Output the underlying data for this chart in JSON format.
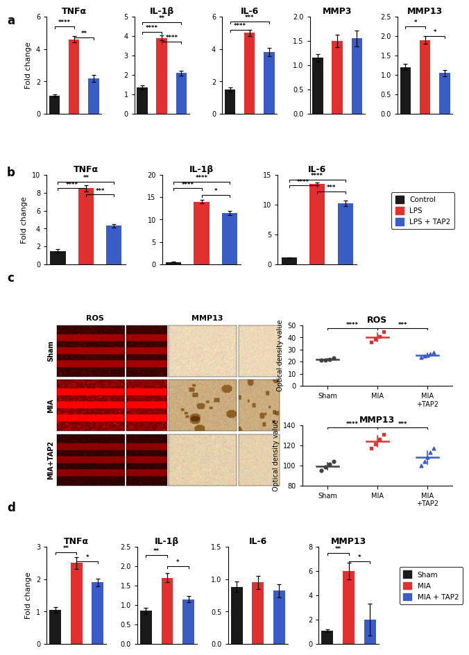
{
  "colors": {
    "black": "#1a1a1a",
    "red": "#e03030",
    "blue": "#3a5cc5",
    "sham_dot": "#404040",
    "mia_dot": "#e03030",
    "mia_tap2_dot": "#3a5cc5"
  },
  "panel_a": {
    "title": "a",
    "genes": [
      "TNFα",
      "IL-1β",
      "IL-6",
      "MMP3",
      "MMP13"
    ],
    "ylabel": "Fold change",
    "data": {
      "TNFα": {
        "means": [
          1.1,
          4.6,
          2.2
        ],
        "errors": [
          0.08,
          0.18,
          0.22
        ],
        "ylim": [
          0,
          6
        ],
        "yticks": [
          0,
          2,
          4,
          6
        ],
        "sig_lines": [
          [
            "****",
            0,
            1,
            5.4
          ],
          [
            "**",
            1,
            2,
            4.7
          ]
        ]
      },
      "IL-1β": {
        "means": [
          1.35,
          3.9,
          2.1
        ],
        "errors": [
          0.1,
          0.12,
          0.13
        ],
        "ylim": [
          0,
          5
        ],
        "yticks": [
          0,
          1,
          2,
          3,
          4,
          5
        ],
        "sig_lines": [
          [
            "**",
            0,
            2,
            4.7
          ],
          [
            "****",
            0,
            1,
            4.2
          ],
          [
            "****",
            1,
            2,
            3.7
          ]
        ]
      },
      "IL-6": {
        "means": [
          1.5,
          5.0,
          3.8
        ],
        "errors": [
          0.12,
          0.18,
          0.25
        ],
        "ylim": [
          0,
          6
        ],
        "yticks": [
          0,
          2,
          4,
          6
        ],
        "sig_lines": [
          [
            "***",
            0,
            2,
            5.7
          ],
          [
            "****",
            0,
            1,
            5.2
          ]
        ]
      },
      "MMP3": {
        "means": [
          1.15,
          1.5,
          1.55
        ],
        "errors": [
          0.08,
          0.13,
          0.16
        ],
        "ylim": [
          0.0,
          2.0
        ],
        "yticks": [
          0.0,
          0.5,
          1.0,
          1.5,
          2.0
        ],
        "sig_lines": []
      },
      "MMP13": {
        "means": [
          1.2,
          1.9,
          1.05
        ],
        "errors": [
          0.08,
          0.1,
          0.08
        ],
        "ylim": [
          0.0,
          2.5
        ],
        "yticks": [
          0.0,
          0.5,
          1.0,
          1.5,
          2.0,
          2.5
        ],
        "sig_lines": [
          [
            "*",
            0,
            1,
            2.25
          ],
          [
            "*",
            1,
            2,
            2.0
          ]
        ]
      }
    }
  },
  "panel_b": {
    "title": "b",
    "genes": [
      "TNFα",
      "IL-1β",
      "IL-6"
    ],
    "ylabel": "Fold change",
    "legend_labels": [
      "Control",
      "LPS",
      "LPS + TAP2"
    ],
    "data": {
      "TNFα": {
        "means": [
          1.5,
          8.5,
          4.3
        ],
        "errors": [
          0.18,
          0.35,
          0.18
        ],
        "ylim": [
          0,
          10
        ],
        "yticks": [
          0,
          2,
          4,
          6,
          8,
          10
        ],
        "sig_lines": [
          [
            "**",
            0,
            2,
            9.2
          ],
          [
            "****",
            0,
            1,
            8.5
          ],
          [
            "***",
            1,
            2,
            7.8
          ]
        ]
      },
      "IL-1β": {
        "means": [
          0.5,
          14.0,
          11.5
        ],
        "errors": [
          0.04,
          0.35,
          0.45
        ],
        "ylim": [
          0,
          20
        ],
        "yticks": [
          0,
          5,
          10,
          15,
          20
        ],
        "sig_lines": [
          [
            "****",
            0,
            2,
            18.5
          ],
          [
            "****",
            0,
            1,
            17.0
          ],
          [
            "*",
            1,
            2,
            15.5
          ]
        ]
      },
      "IL-6": {
        "means": [
          1.1,
          13.5,
          10.2
        ],
        "errors": [
          0.08,
          0.25,
          0.45
        ],
        "ylim": [
          0,
          15
        ],
        "yticks": [
          0,
          5,
          10,
          15
        ],
        "sig_lines": [
          [
            "****",
            0,
            2,
            14.2
          ],
          [
            "****",
            0,
            1,
            13.2
          ],
          [
            "***",
            1,
            2,
            12.2
          ]
        ]
      }
    }
  },
  "panel_c_ros": {
    "title": "ROS",
    "ylabel": "Optical density value",
    "categories": [
      "Sham",
      "MIA",
      "MIA\n+TAP2"
    ],
    "sham_dots": [
      21.0,
      21.5,
      22.0,
      22.8
    ],
    "mia_dots": [
      36.0,
      38.5,
      41.0,
      44.5
    ],
    "mia_tap2_dots": [
      23.5,
      24.5,
      25.5,
      26.5,
      27.5
    ],
    "sham_mean": 21.8,
    "mia_mean": 40.0,
    "mia_tap2_mean": 25.5,
    "sham_err": 0.8,
    "mia_err": 3.5,
    "mia_tap2_err": 1.5,
    "ylim": [
      0,
      50
    ],
    "yticks": [
      0,
      10,
      20,
      30,
      40,
      50
    ],
    "sig_lines": [
      [
        "****",
        0,
        1,
        47.5
      ],
      [
        "***",
        1,
        2,
        47.5
      ]
    ]
  },
  "panel_c_mmp13": {
    "title": "MMP13",
    "ylabel": "Optical density value",
    "categories": [
      "Sham",
      "MIA",
      "MIA\n+TAP2"
    ],
    "sham_dots": [
      95.0,
      98.5,
      101.0,
      104.0
    ],
    "mia_dots": [
      117.0,
      121.0,
      126.0,
      131.0
    ],
    "mia_tap2_dots": [
      100.0,
      104.0,
      108.0,
      113.0,
      117.0
    ],
    "sham_mean": 99.5,
    "mia_mean": 124.0,
    "mia_tap2_mean": 108.0,
    "sham_err": 3.5,
    "mia_err": 5.5,
    "mia_tap2_err": 6.5,
    "ylim": [
      80,
      140
    ],
    "yticks": [
      80,
      100,
      120,
      140
    ],
    "sig_lines": [
      [
        "****",
        0,
        1,
        137.5
      ],
      [
        "***",
        1,
        2,
        137.5
      ]
    ]
  },
  "panel_d": {
    "title": "d",
    "genes": [
      "TNFα",
      "IL-1β",
      "IL-6",
      "MMP13"
    ],
    "ylabel": "Fold change",
    "legend_labels": [
      "Sham",
      "MIA",
      "MIA + TAP2"
    ],
    "data": {
      "TNFα": {
        "means": [
          1.05,
          2.5,
          1.9
        ],
        "errors": [
          0.08,
          0.18,
          0.12
        ],
        "ylim": [
          0,
          3
        ],
        "yticks": [
          0,
          1,
          2,
          3
        ],
        "sig_lines": [
          [
            "**",
            0,
            1,
            2.82
          ],
          [
            "*",
            1,
            2,
            2.55
          ]
        ]
      },
      "IL-1β": {
        "means": [
          0.85,
          1.7,
          1.15
        ],
        "errors": [
          0.08,
          0.12,
          0.08
        ],
        "ylim": [
          0.0,
          2.5
        ],
        "yticks": [
          0.0,
          0.5,
          1.0,
          1.5,
          2.0,
          2.5
        ],
        "sig_lines": [
          [
            "**",
            0,
            1,
            2.28
          ],
          [
            "*",
            1,
            2,
            2.0
          ]
        ]
      },
      "IL-6": {
        "means": [
          0.88,
          0.95,
          0.82
        ],
        "errors": [
          0.08,
          0.1,
          0.1
        ],
        "ylim": [
          0.0,
          1.5
        ],
        "yticks": [
          0.0,
          0.5,
          1.0,
          1.5
        ],
        "sig_lines": []
      },
      "MMP13": {
        "means": [
          1.1,
          6.0,
          2.0
        ],
        "errors": [
          0.12,
          0.7,
          1.3
        ],
        "ylim": [
          0,
          8
        ],
        "yticks": [
          0,
          2,
          4,
          6,
          8
        ],
        "sig_lines": [
          [
            "**",
            0,
            1,
            7.5
          ],
          [
            "*",
            1,
            2,
            6.8
          ]
        ]
      }
    }
  }
}
